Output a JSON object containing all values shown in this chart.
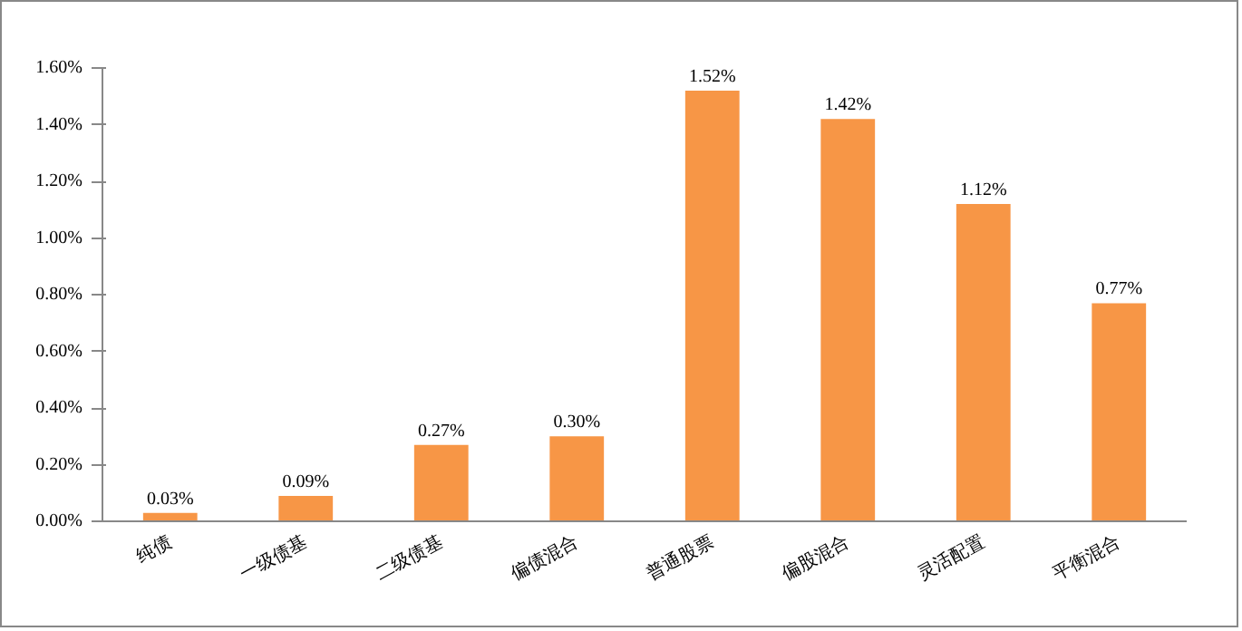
{
  "chart_data": {
    "type": "bar",
    "categories": [
      "纯债",
      "一级债基",
      "二级债基",
      "偏债混合",
      "普通股票",
      "偏股混合",
      "灵活配置",
      "平衡混合"
    ],
    "values": [
      0.03,
      0.09,
      0.27,
      0.3,
      1.52,
      1.42,
      1.12,
      0.77
    ],
    "value_labels": [
      "0.03%",
      "0.09%",
      "0.27%",
      "0.30%",
      "1.52%",
      "1.42%",
      "1.12%",
      "0.77%"
    ],
    "color": "#f79646",
    "ylim": [
      0,
      1.6
    ],
    "yticks": [
      {
        "value": 0,
        "label": "0.00%"
      },
      {
        "value": 0.2,
        "label": "0.20%"
      },
      {
        "value": 0.4,
        "label": "0.40%"
      },
      {
        "value": 0.6,
        "label": "0.60%"
      },
      {
        "value": 0.8,
        "label": "0.80%"
      },
      {
        "value": 1.0,
        "label": "1.00%"
      },
      {
        "value": 1.2,
        "label": "1.20%"
      },
      {
        "value": 1.4,
        "label": "1.40%"
      },
      {
        "value": 1.6,
        "label": "1.60%"
      }
    ],
    "grid": false
  }
}
